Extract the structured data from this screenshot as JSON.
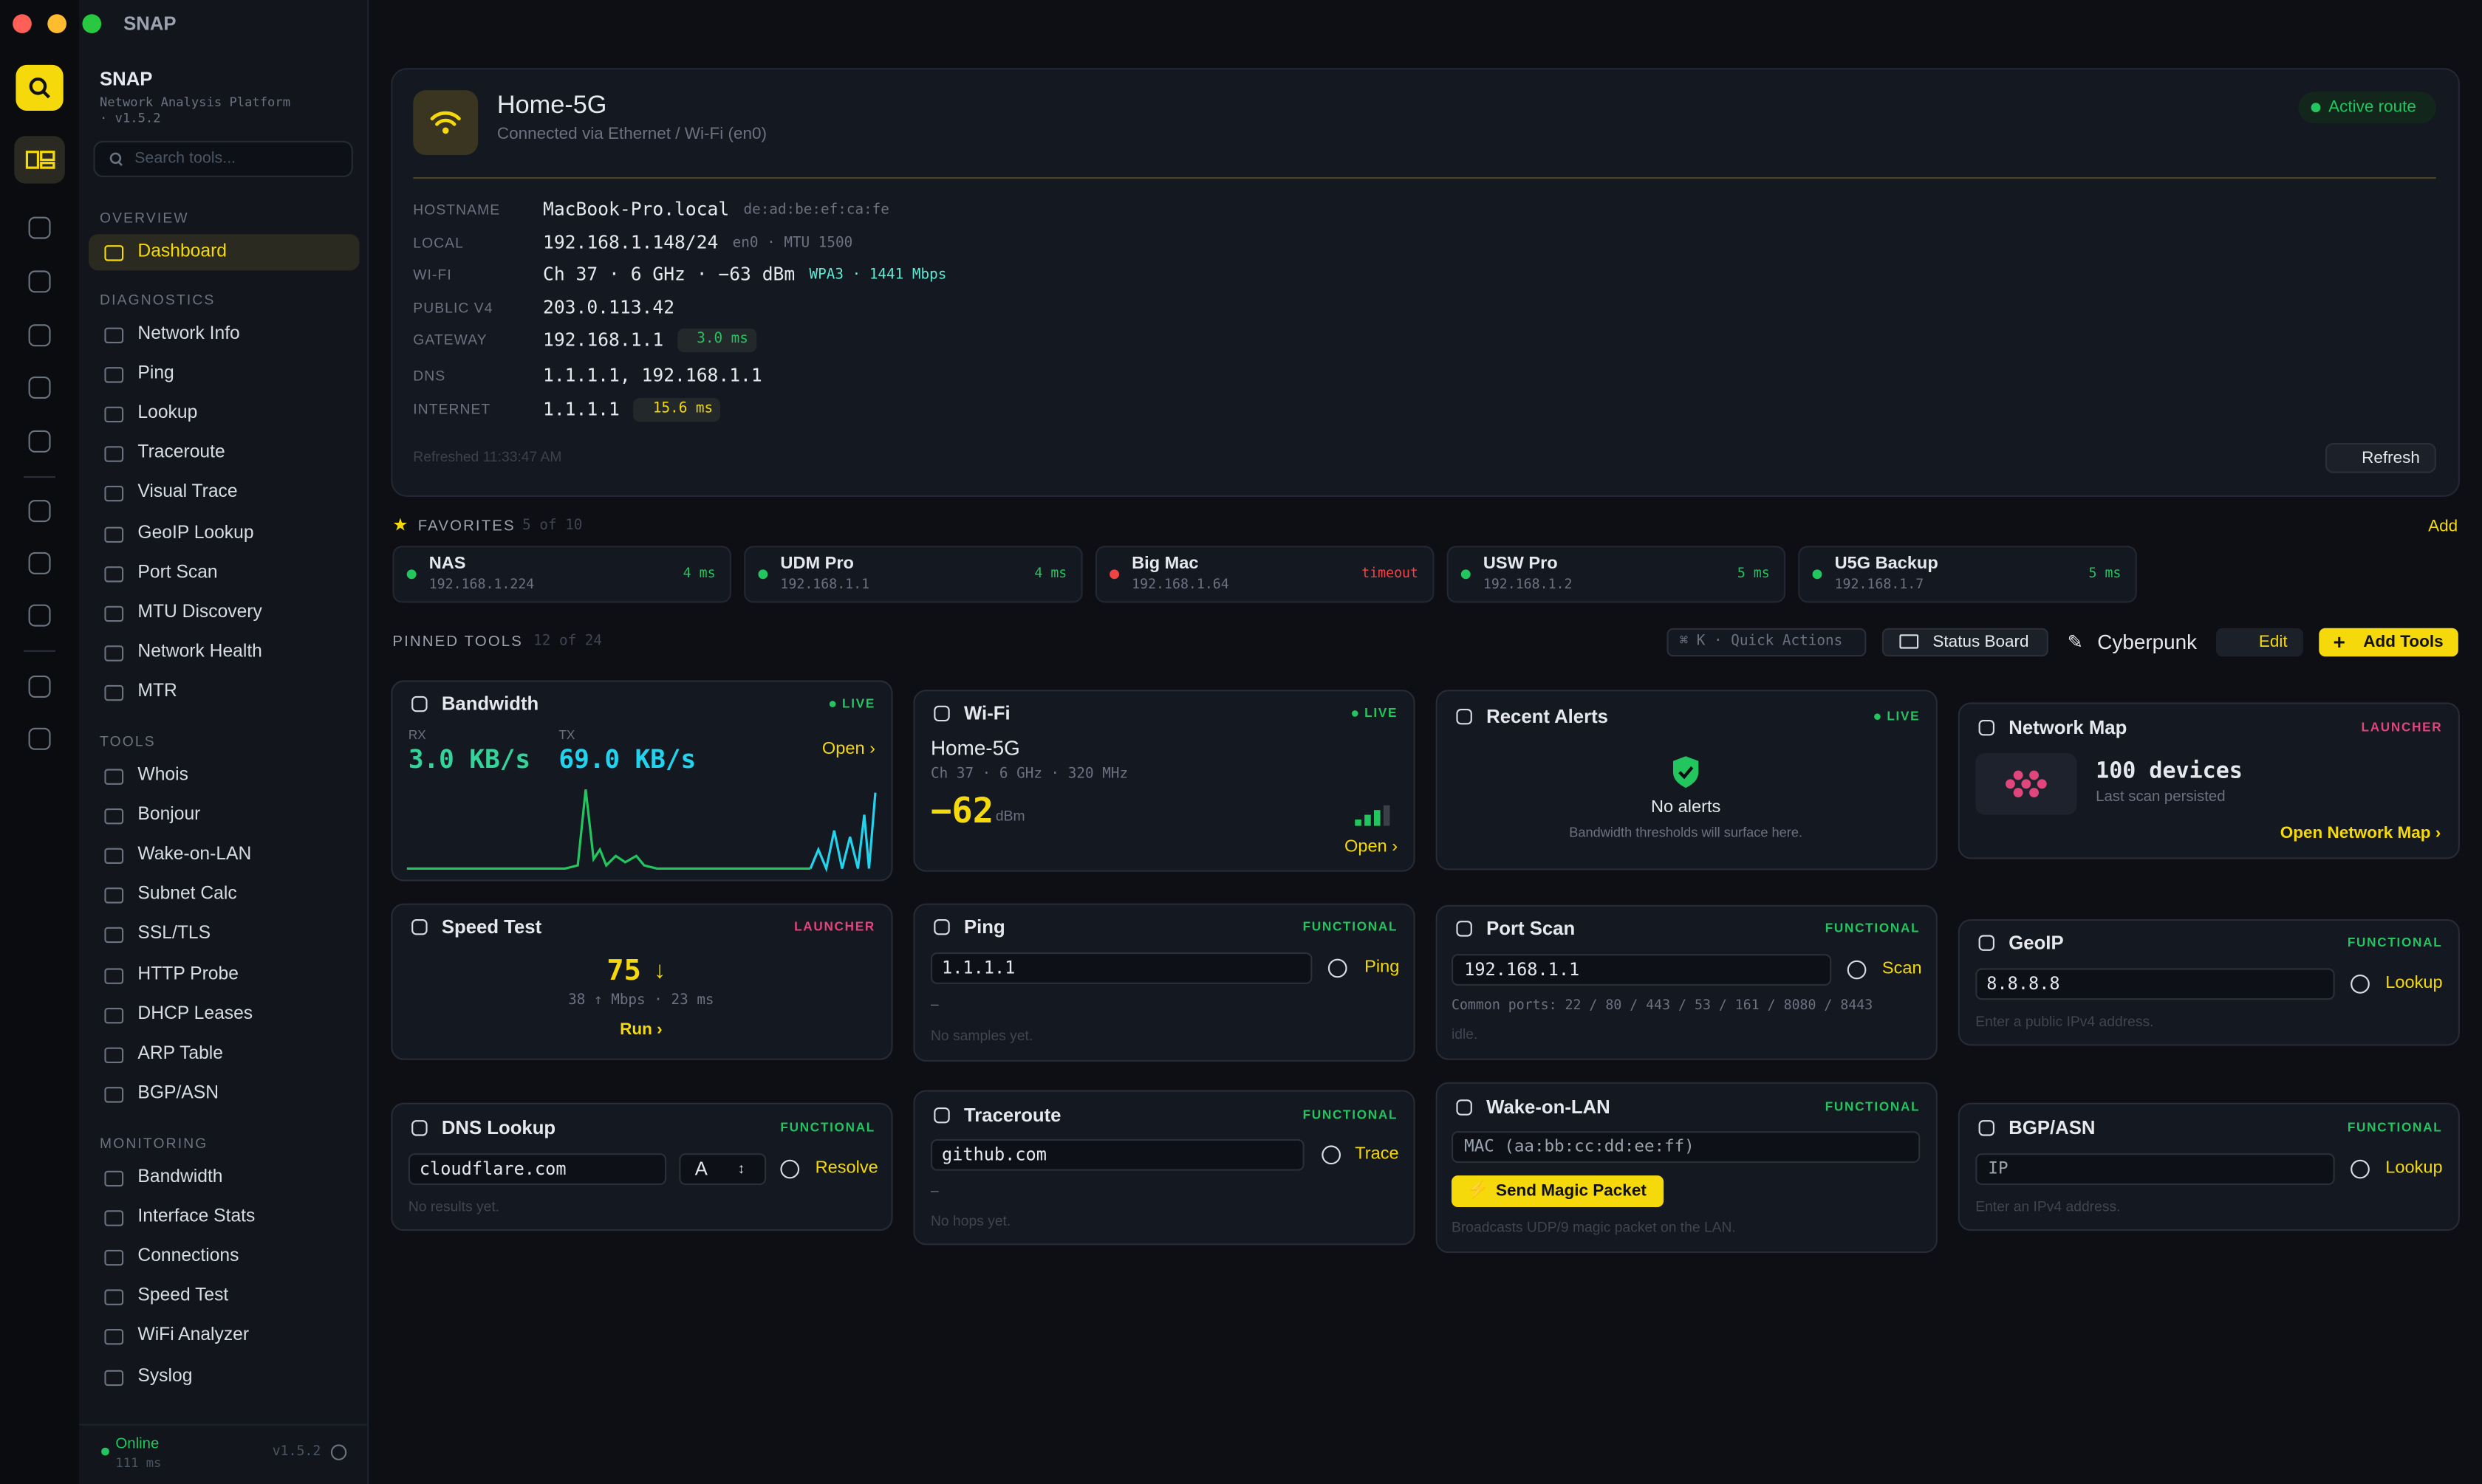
{
  "window_title": "SNAP",
  "sidebar": {
    "name": "SNAP",
    "subtitle": [
      "Network Analysis Platform",
      "· v1.5.2"
    ],
    "search_placeholder": "Search tools...",
    "sections": [
      {
        "title": "OVERVIEW",
        "items": [
          "Dashboard"
        ]
      },
      {
        "title": "DIAGNOSTICS",
        "items": [
          "Network Info",
          "Ping",
          "Lookup",
          "Traceroute",
          "Visual Trace",
          "GeoIP Lookup",
          "Port Scan",
          "MTU Discovery",
          "Network Health",
          "MTR"
        ]
      },
      {
        "title": "TOOLS",
        "items": [
          "Whois",
          "Bonjour",
          "Wake-on-LAN",
          "Subnet Calc",
          "SSL/TLS",
          "HTTP Probe",
          "DHCP Leases",
          "ARP Table",
          "BGP/ASN"
        ]
      },
      {
        "title": "MONITORING",
        "items": [
          "Bandwidth",
          "Interface Stats",
          "Connections",
          "Speed Test",
          "WiFi Analyzer",
          "Syslog"
        ]
      }
    ],
    "footer": {
      "status": "Online",
      "latency": "111 ms",
      "version": "v1.5.2"
    }
  },
  "header": {
    "network": "Home-5G",
    "connection": "Connected via Ethernet / Wi-Fi (en0)",
    "badge": "Active route",
    "rows": [
      {
        "label": "HOSTNAME",
        "value": "MacBook-Pro.local",
        "extra": "de:ad:be:ef:ca:fe",
        "extra_color": "#6b7280"
      },
      {
        "label": "LOCAL",
        "value": "192.168.1.148/24",
        "extra": "en0 · MTU 1500",
        "extra_color": "#6b7280"
      },
      {
        "label": "WI-FI",
        "value": "Ch 37 · 6 GHz · −63 dBm",
        "extra": "WPA3 · 1441 Mbps",
        "extra_color": "#5eead4"
      },
      {
        "label": "PUBLIC V4",
        "value": "203.0.113.42"
      },
      {
        "label": "GATEWAY",
        "value": "192.168.1.1",
        "pill": "3.0 ms",
        "pill_color": "#22c55e"
      },
      {
        "label": "DNS",
        "value": "1.1.1.1, 192.168.1.1"
      },
      {
        "label": "INTERNET",
        "value": "1.1.1.1",
        "pill": "15.6 ms",
        "pill_color": "#f5d90a"
      }
    ],
    "refreshed": "Refreshed 11:33:47 AM",
    "refresh": "Refresh"
  },
  "favorites": {
    "title": "FAVORITES",
    "count": "5 of 10",
    "add": "Add",
    "items": [
      {
        "name": "NAS",
        "ip": "192.168.1.224",
        "latency": "4 ms",
        "color": "#22c55e"
      },
      {
        "name": "UDM Pro",
        "ip": "192.168.1.1",
        "latency": "4 ms",
        "color": "#22c55e"
      },
      {
        "name": "Big Mac",
        "ip": "192.168.1.64",
        "latency": "timeout",
        "color": "#ef4444"
      },
      {
        "name": "USW Pro",
        "ip": "192.168.1.2",
        "latency": "5 ms",
        "color": "#22c55e"
      },
      {
        "name": "U5G Backup",
        "ip": "192.168.1.7",
        "latency": "5 ms",
        "color": "#22c55e"
      }
    ]
  },
  "pinned": {
    "title": "PINNED TOOLS",
    "count": "12 of 24",
    "quick_actions": "⌘ K · Quick Actions",
    "status_board": "Status Board",
    "theme": "Cyberpunk",
    "edit": "Edit",
    "add_tools": "Add Tools"
  },
  "cards": {
    "bandwidth": {
      "title": "Bandwidth",
      "badge": "LIVE",
      "rx_label": "RX",
      "rx": "3.0 KB/s",
      "tx_label": "TX",
      "tx": "69.0 KB/s",
      "action": "Open ›"
    },
    "wifi": {
      "title": "Wi-Fi",
      "badge": "LIVE",
      "ssid": "Home-5G",
      "details": "Ch 37 · 6 GHz · 320 MHz",
      "rssi": "−62",
      "unit": "dBm",
      "action": "Open ›"
    },
    "alerts": {
      "title": "Recent Alerts",
      "badge": "LIVE",
      "message": "No alerts",
      "hint": "Bandwidth thresholds will surface here."
    },
    "network_map": {
      "title": "Network Map",
      "badge": "LAUNCHER",
      "devices": "100 devices",
      "note": "Last scan persisted",
      "action": "Open Network Map ›"
    },
    "speed_test": {
      "title": "Speed Test",
      "badge": "LAUNCHER",
      "download": "75",
      "detail": "38 ↑ Mbps · 23 ms",
      "action": "Run ›"
    },
    "ping": {
      "title": "Ping",
      "badge": "FUNCTIONAL",
      "input": "1.1.1.1",
      "button": "Ping",
      "dash": "–",
      "status": "No samples yet."
    },
    "port_scan": {
      "title": "Port Scan",
      "badge": "FUNCTIONAL",
      "input": "192.168.1.1",
      "button": "Scan",
      "hint": "Common ports: 22 / 80 / 443 / 53 / 161 / 8080 / 8443",
      "status": "idle."
    },
    "geoip": {
      "title": "GeoIP",
      "badge": "FUNCTIONAL",
      "input": "8.8.8.8",
      "button": "Lookup",
      "hint": "Enter a public IPv4 address."
    },
    "dns": {
      "title": "DNS Lookup",
      "badge": "FUNCTIONAL",
      "input": "cloudflare.com",
      "record": "A",
      "button": "Resolve",
      "status": "No results yet."
    },
    "traceroute": {
      "title": "Traceroute",
      "badge": "FUNCTIONAL",
      "input": "github.com",
      "button": "Trace",
      "dash": "–",
      "status": "No hops yet."
    },
    "wol": {
      "title": "Wake-on-LAN",
      "badge": "FUNCTIONAL",
      "placeholder": "MAC (aa:bb:cc:dd:ee:ff)",
      "button": "Send Magic Packet",
      "hint": "Broadcasts UDP/9 magic packet on the LAN."
    },
    "bgp": {
      "title": "BGP/ASN",
      "badge": "FUNCTIONAL",
      "placeholder": "IP",
      "button": "Lookup",
      "hint": "Enter an IPv4 address."
    }
  }
}
